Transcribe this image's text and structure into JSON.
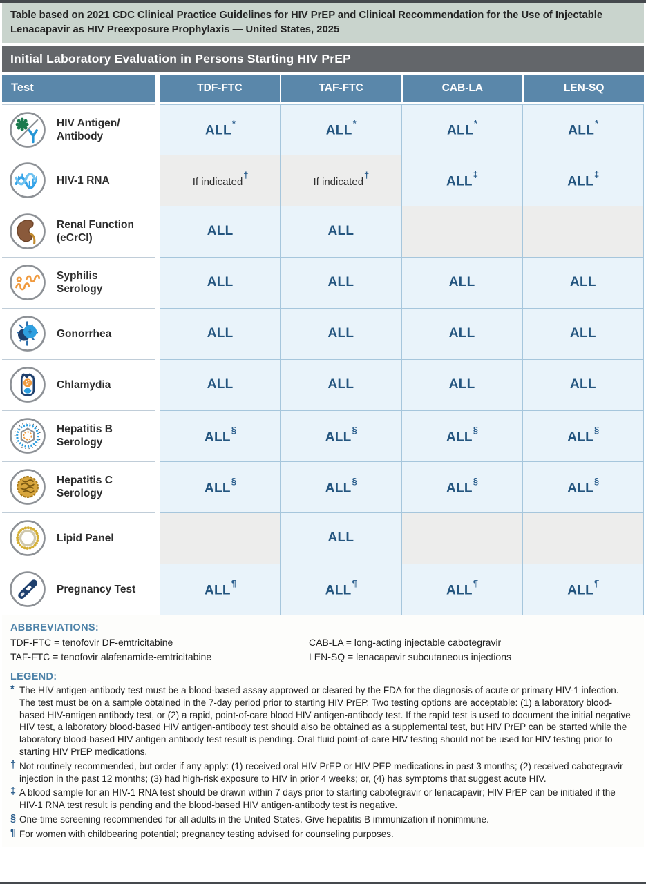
{
  "colors": {
    "banner_bg": "#c9d4cd",
    "title_bg": "#63666a",
    "header_bg": "#5a87aa",
    "cell_blue": "#e9f3fa",
    "cell_gray": "#ededec",
    "all_text": "#24557f",
    "note_blue": "#2a5d8c",
    "heading_blue": "#4d82a8",
    "grid_border": "#a6c6dc"
  },
  "banner": {
    "text": "Table based on 2021 CDC Clinical Practice Guidelines for HIV PrEP and Clinical Recommendation for the Use of Injectable Lenacapavir as HIV Preexposure Prophylaxis — United States, 2025"
  },
  "title": "Initial Laboratory Evaluation in Persons Starting HIV PrEP",
  "table": {
    "columns": [
      "Test",
      "TDF-FTC",
      "TAF-FTC",
      "CAB-LA",
      "LEN-SQ"
    ],
    "rows": [
      {
        "id": "hiv-antigen-antibody",
        "label": "HIV Antigen/\nAntibody",
        "icon": "hiv-antigen-antibody-icon",
        "cells": [
          {
            "text": "ALL",
            "note": "*",
            "bg": "blue"
          },
          {
            "text": "ALL",
            "note": "*",
            "bg": "blue"
          },
          {
            "text": "ALL",
            "note": "*",
            "bg": "blue"
          },
          {
            "text": "ALL",
            "note": "*",
            "bg": "blue"
          }
        ]
      },
      {
        "id": "hiv-1-rna",
        "label": "HIV-1 RNA",
        "icon": "hiv-rna-icon",
        "cells": [
          {
            "text": "If indicated",
            "note": "†",
            "bg": "gray"
          },
          {
            "text": "If indicated",
            "note": "†",
            "bg": "gray"
          },
          {
            "text": "ALL",
            "note": "‡",
            "bg": "blue"
          },
          {
            "text": "ALL",
            "note": "‡",
            "bg": "blue"
          }
        ]
      },
      {
        "id": "renal-function",
        "label": "Renal Function\n(eCrCl)",
        "icon": "kidney-icon",
        "cells": [
          {
            "text": "ALL",
            "note": "",
            "bg": "blue"
          },
          {
            "text": "ALL",
            "note": "",
            "bg": "blue"
          },
          {
            "text": "",
            "note": "",
            "bg": "gray"
          },
          {
            "text": "",
            "note": "",
            "bg": "gray"
          }
        ]
      },
      {
        "id": "syphilis-serology",
        "label": "Syphilis\nSerology",
        "icon": "syphilis-icon",
        "cells": [
          {
            "text": "ALL",
            "note": "",
            "bg": "blue"
          },
          {
            "text": "ALL",
            "note": "",
            "bg": "blue"
          },
          {
            "text": "ALL",
            "note": "",
            "bg": "blue"
          },
          {
            "text": "ALL",
            "note": "",
            "bg": "blue"
          }
        ]
      },
      {
        "id": "gonorrhea",
        "label": "Gonorrhea",
        "icon": "gonorrhea-icon",
        "cells": [
          {
            "text": "ALL",
            "note": "",
            "bg": "blue"
          },
          {
            "text": "ALL",
            "note": "",
            "bg": "blue"
          },
          {
            "text": "ALL",
            "note": "",
            "bg": "blue"
          },
          {
            "text": "ALL",
            "note": "",
            "bg": "blue"
          }
        ]
      },
      {
        "id": "chlamydia",
        "label": "Chlamydia",
        "icon": "chlamydia-icon",
        "cells": [
          {
            "text": "ALL",
            "note": "",
            "bg": "blue"
          },
          {
            "text": "ALL",
            "note": "",
            "bg": "blue"
          },
          {
            "text": "ALL",
            "note": "",
            "bg": "blue"
          },
          {
            "text": "ALL",
            "note": "",
            "bg": "blue"
          }
        ]
      },
      {
        "id": "hepatitis-b-serology",
        "label": "Hepatitis B\nSerology",
        "icon": "hepatitis-b-icon",
        "cells": [
          {
            "text": "ALL",
            "note": "§",
            "bg": "blue"
          },
          {
            "text": "ALL",
            "note": "§",
            "bg": "blue"
          },
          {
            "text": "ALL",
            "note": "§",
            "bg": "blue"
          },
          {
            "text": "ALL",
            "note": "§",
            "bg": "blue"
          }
        ]
      },
      {
        "id": "hepatitis-c-serology",
        "label": "Hepatitis C\nSerology",
        "icon": "hepatitis-c-icon",
        "cells": [
          {
            "text": "ALL",
            "note": "§",
            "bg": "blue"
          },
          {
            "text": "ALL",
            "note": "§",
            "bg": "blue"
          },
          {
            "text": "ALL",
            "note": "§",
            "bg": "blue"
          },
          {
            "text": "ALL",
            "note": "§",
            "bg": "blue"
          }
        ]
      },
      {
        "id": "lipid-panel",
        "label": "Lipid Panel",
        "icon": "lipid-panel-icon",
        "cells": [
          {
            "text": "",
            "note": "",
            "bg": "gray"
          },
          {
            "text": "ALL",
            "note": "",
            "bg": "blue"
          },
          {
            "text": "",
            "note": "",
            "bg": "gray"
          },
          {
            "text": "",
            "note": "",
            "bg": "gray"
          }
        ]
      },
      {
        "id": "pregnancy-test",
        "label": "Pregnancy Test",
        "icon": "pregnancy-test-icon",
        "cells": [
          {
            "text": "ALL",
            "note": "¶",
            "bg": "blue"
          },
          {
            "text": "ALL",
            "note": "¶",
            "bg": "blue"
          },
          {
            "text": "ALL",
            "note": "¶",
            "bg": "blue"
          },
          {
            "text": "ALL",
            "note": "¶",
            "bg": "blue"
          }
        ]
      }
    ]
  },
  "abbreviations": {
    "heading": "ABBREVIATIONS:",
    "items": [
      {
        "text": "TDF-FTC = tenofovir DF-emtricitabine"
      },
      {
        "text": "TAF-FTC = tenofovir alafenamide-emtricitabine"
      },
      {
        "text": "CAB-LA = long-acting injectable cabotegravir"
      },
      {
        "text": "LEN-SQ = lenacapavir subcutaneous injections"
      }
    ]
  },
  "legend": {
    "heading": "LEGEND:",
    "items": [
      {
        "symbol": "*",
        "text": "The HIV antigen-antibody test must be a blood-based assay approved or cleared by the FDA for the diagnosis of acute or primary HIV-1 infection. The test must be on a sample obtained in the 7-day period prior to starting HIV PrEP. Two testing options are acceptable: (1) a laboratory blood-based HIV-antigen antibody test, or (2) a rapid, point-of-care blood HIV antigen-antibody test. If the rapid test is used to document the initial negative HIV test, a laboratory blood-based HIV antigen-antibody test should also be obtained as a supplemental test, but HIV PrEP can be started while the laboratory blood-based HIV antigen antibody test result is pending. Oral fluid point-of-care HIV testing should not be used for HIV testing prior to starting HIV PrEP medications."
      },
      {
        "symbol": "†",
        "text": "Not routinely recommended, but order if any apply: (1) received oral HIV PrEP or HIV PEP medications in past 3 months; (2) received cabotegravir injection in the past 12 months; (3) had high-risk exposure to HIV in prior 4 weeks; or, (4) has symptoms that suggest acute HIV."
      },
      {
        "symbol": "‡",
        "text": "A blood sample for an HIV-1 RNA test should be drawn within 7 days prior to starting cabotegravir or lenacapavir; HIV PrEP can be initiated if the HIV-1 RNA test result is pending and the blood-based HIV antigen-antibody test is negative."
      },
      {
        "symbol": "§",
        "text": "One-time screening recommended for all adults in the United States. Give hepatitis B immunization if nonimmune."
      },
      {
        "symbol": "¶",
        "text": "For women with childbearing potential; pregnancy testing advised for counseling purposes."
      }
    ]
  }
}
